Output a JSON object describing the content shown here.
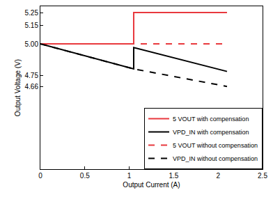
{
  "chart_data": {
    "type": "line",
    "x_label": "Output Current (A)",
    "y_label": "Output Voltage (V)",
    "xlim": [
      0,
      2.5
    ],
    "xticks": [
      0,
      0.5,
      1,
      1.5,
      2,
      2.5
    ],
    "ylim": [
      4.0,
      5.3
    ],
    "yticks": [
      4.66,
      4.75,
      {
        "value": 5.0,
        "label": "5.00"
      },
      5.15,
      5.25
    ],
    "grid": false,
    "legend": "lower right",
    "series": [
      {
        "name": "5 VOUT with compensation",
        "color": "#e8383d",
        "line_style": "solid",
        "x": [
          0,
          1.05,
          1.05,
          2.1
        ],
        "values": [
          5.0,
          5.0,
          5.25,
          5.25
        ]
      },
      {
        "name": "VPD_IN with compensation",
        "color": "#000000",
        "line_style": "solid",
        "x": [
          0,
          1.05,
          1.05,
          2.1
        ],
        "values": [
          5.0,
          4.8,
          4.97,
          4.78
        ]
      },
      {
        "name": "5 VOUT without compensation",
        "color": "#e8383d",
        "line_style": "dash",
        "x": [
          0,
          2.1
        ],
        "values": [
          5.0,
          5.0
        ]
      },
      {
        "name": "VPD_IN without compensation",
        "color": "#000000",
        "line_style": "dash",
        "x": [
          0,
          1.05,
          2.1
        ],
        "values": [
          5.0,
          4.8,
          4.66
        ]
      }
    ]
  }
}
